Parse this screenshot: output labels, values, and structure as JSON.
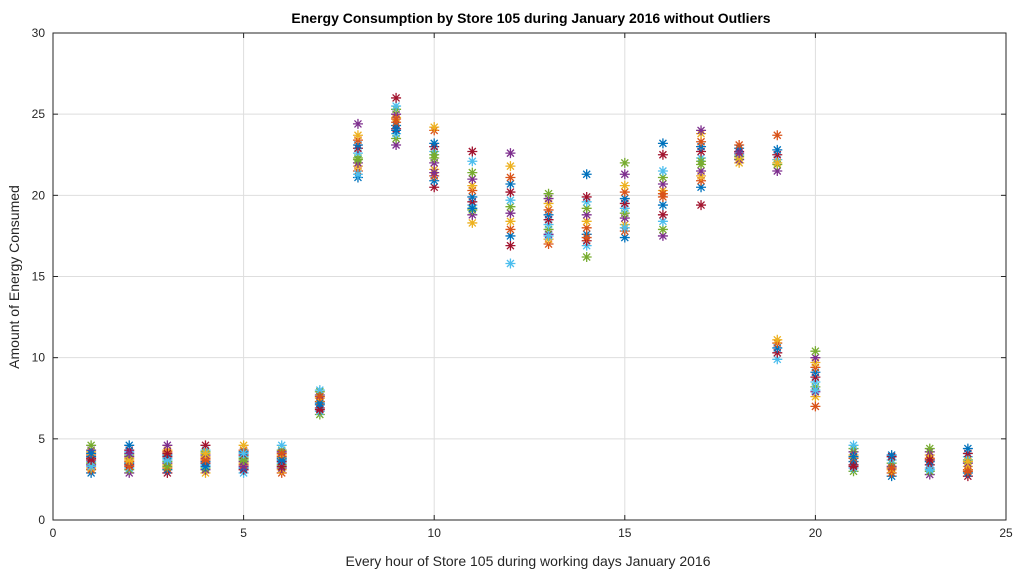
{
  "chart_data": {
    "type": "scatter",
    "title": "Energy Consumption by Store 105 during January 2016 without Outliers",
    "xlabel": "Every hour of Store 105 during working days January 2016",
    "ylabel": "Amount of Energy Consumed",
    "xlim": [
      0,
      25
    ],
    "ylim": [
      0,
      30
    ],
    "xticks": [
      0,
      5,
      10,
      15,
      20,
      25
    ],
    "yticks": [
      0,
      5,
      10,
      15,
      20,
      25,
      30
    ],
    "grid": true,
    "marker": "asterisk",
    "colors": [
      "#0072BD",
      "#D95319",
      "#EDB120",
      "#7E2F8E",
      "#77AC30",
      "#4DBEEE",
      "#A2142F"
    ],
    "x": [
      1,
      2,
      3,
      4,
      5,
      6,
      7,
      8,
      9,
      10,
      11,
      12,
      13,
      14,
      15,
      16,
      17,
      18,
      19,
      20,
      21,
      22,
      23,
      24
    ],
    "y_by_hour": [
      [
        2.9,
        3.1,
        3.2,
        3.4,
        3.5,
        3.6,
        3.8,
        3.9,
        4.0,
        4.2,
        4.3,
        4.6,
        3.3,
        3.7,
        4.1
      ],
      [
        2.9,
        3.1,
        3.2,
        3.4,
        3.5,
        3.6,
        3.8,
        3.9,
        4.0,
        4.2,
        4.3,
        4.6,
        3.3,
        3.7,
        4.1
      ],
      [
        2.9,
        3.1,
        3.2,
        3.4,
        3.5,
        3.6,
        3.8,
        3.9,
        4.0,
        4.2,
        4.3,
        4.6,
        3.3,
        3.7,
        4.1
      ],
      [
        2.9,
        3.1,
        3.2,
        3.4,
        3.5,
        3.6,
        3.8,
        3.9,
        4.0,
        4.2,
        4.3,
        4.6,
        3.3,
        3.7,
        4.1
      ],
      [
        2.9,
        3.1,
        3.2,
        3.4,
        3.5,
        3.6,
        3.8,
        3.9,
        4.0,
        4.2,
        4.3,
        4.6,
        3.3,
        3.7,
        4.1
      ],
      [
        2.9,
        3.1,
        3.2,
        3.4,
        3.5,
        3.6,
        3.8,
        3.9,
        4.0,
        4.2,
        4.3,
        4.6,
        3.3,
        3.7,
        4.1
      ],
      [
        6.5,
        6.7,
        6.9,
        7.1,
        7.3,
        7.5,
        7.7,
        7.9,
        8.0,
        6.8,
        7.2,
        7.6
      ],
      [
        21.1,
        21.5,
        21.8,
        22.0,
        22.3,
        22.6,
        22.9,
        23.1,
        23.4,
        23.7,
        24.4,
        22.2,
        21.3
      ],
      [
        23.1,
        23.5,
        23.8,
        24.1,
        24.3,
        24.5,
        24.8,
        25.0,
        25.3,
        25.5,
        26.0,
        24.0,
        24.7
      ],
      [
        20.5,
        20.9,
        21.2,
        21.6,
        22.0,
        22.3,
        22.7,
        23.0,
        23.2,
        24.0,
        24.2,
        21.4,
        22.5
      ],
      [
        18.3,
        18.8,
        19.1,
        19.4,
        19.6,
        19.9,
        20.3,
        20.6,
        21.0,
        21.4,
        22.1,
        22.7,
        19.2
      ],
      [
        15.8,
        16.9,
        17.5,
        17.9,
        18.4,
        18.9,
        19.3,
        19.7,
        20.2,
        20.7,
        21.1,
        21.8,
        22.6
      ],
      [
        17.0,
        17.3,
        17.6,
        17.9,
        18.2,
        18.5,
        18.8,
        19.1,
        19.5,
        19.8,
        20.1,
        17.5
      ],
      [
        16.2,
        16.9,
        17.2,
        17.6,
        18.0,
        18.4,
        18.8,
        19.2,
        19.6,
        19.9,
        21.3,
        17.4
      ],
      [
        17.4,
        17.8,
        18.2,
        18.6,
        18.9,
        19.2,
        19.5,
        19.8,
        20.2,
        20.6,
        21.3,
        22.0,
        18.0
      ],
      [
        17.5,
        17.9,
        18.4,
        18.8,
        19.4,
        19.9,
        20.3,
        20.7,
        21.1,
        21.5,
        22.5,
        23.2,
        20.1
      ],
      [
        19.4,
        20.5,
        20.9,
        21.2,
        21.5,
        21.9,
        22.3,
        22.7,
        23.0,
        23.3,
        23.8,
        24.0,
        22.1
      ],
      [
        22.0,
        22.2,
        22.4,
        22.5,
        22.7,
        22.9,
        23.1,
        22.3,
        22.6
      ],
      [
        9.9,
        10.3,
        10.6,
        10.9,
        11.1,
        21.5,
        21.9,
        22.2,
        22.5,
        22.8,
        23.7,
        22.0
      ],
      [
        7.0,
        7.6,
        7.9,
        8.2,
        8.5,
        8.8,
        9.1,
        9.4,
        9.7,
        10.0,
        10.4,
        8.0
      ],
      [
        3.0,
        3.2,
        3.4,
        3.6,
        3.8,
        4.0,
        4.2,
        4.4,
        4.6,
        3.3,
        3.9
      ],
      [
        2.7,
        2.9,
        3.1,
        3.3,
        3.5,
        3.7,
        3.9,
        4.0,
        3.2
      ],
      [
        2.8,
        3.0,
        3.2,
        3.4,
        3.6,
        3.8,
        4.0,
        4.2,
        4.4,
        3.1,
        3.7
      ],
      [
        2.7,
        2.9,
        3.1,
        3.3,
        3.5,
        3.7,
        3.9,
        4.1,
        4.4,
        3.0,
        3.6
      ]
    ]
  }
}
